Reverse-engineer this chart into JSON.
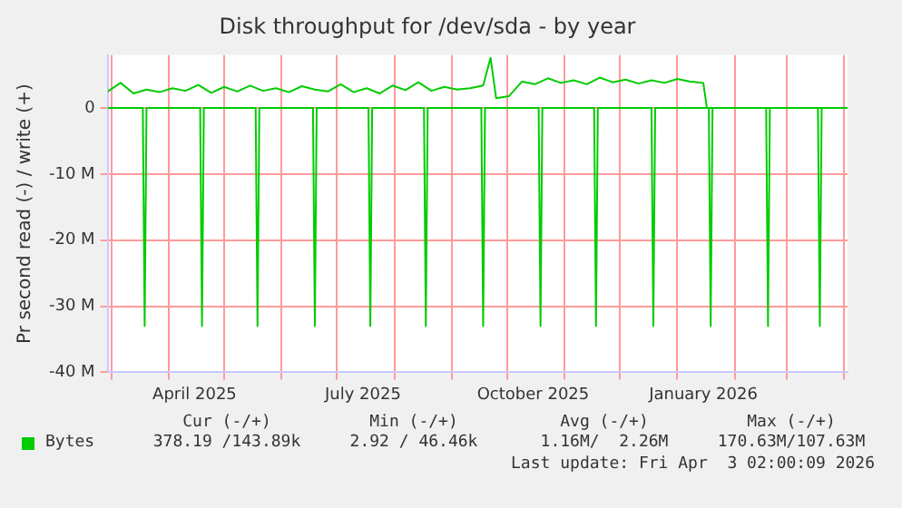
{
  "chart_data": {
    "type": "line",
    "title": "Disk throughput for /dev/sda - by year",
    "ylabel": "Pr second read (-) / write (+)",
    "xlim": [
      "2025-02-27",
      "2026-04-03"
    ],
    "xticks": [
      {
        "value": "2025-03-01",
        "label": null
      },
      {
        "value": "2025-04-01",
        "label": null
      },
      {
        "value": "2025-04-15",
        "label": "April 2025"
      },
      {
        "value": "2025-05-01",
        "label": null
      },
      {
        "value": "2025-06-01",
        "label": null
      },
      {
        "value": "2025-07-01",
        "label": null
      },
      {
        "value": "2025-07-15",
        "label": "July 2025"
      },
      {
        "value": "2025-08-01",
        "label": null
      },
      {
        "value": "2025-09-01",
        "label": null
      },
      {
        "value": "2025-10-01",
        "label": null
      },
      {
        "value": "2025-10-15",
        "label": "October 2025"
      },
      {
        "value": "2025-11-01",
        "label": null
      },
      {
        "value": "2025-12-01",
        "label": null
      },
      {
        "value": "2026-01-01",
        "label": null
      },
      {
        "value": "2026-01-15",
        "label": "January 2026"
      },
      {
        "value": "2026-02-01",
        "label": null
      },
      {
        "value": "2026-03-01",
        "label": null
      },
      {
        "value": "2026-04-01",
        "label": null
      }
    ],
    "ylim": [
      -40,
      8
    ],
    "yticks": [
      {
        "value": -40,
        "label": "-40 M"
      },
      {
        "value": -30,
        "label": "-30 M"
      },
      {
        "value": -20,
        "label": "-20 M"
      },
      {
        "value": -10,
        "label": "-10 M"
      },
      0
    ],
    "grid": true,
    "legend": "bottom",
    "marker": "none",
    "line_style": "solid",
    "series": [
      {
        "name": "Bytes",
        "color": "#00cc00",
        "x": [
          "2025-02-27",
          "2025-03-18",
          "2025-03-19",
          "2025-03-20",
          "2025-04-18",
          "2025-04-19",
          "2025-04-20",
          "2025-05-18",
          "2025-05-19",
          "2025-05-20",
          "2025-06-18",
          "2025-06-19",
          "2025-06-20",
          "2025-07-18",
          "2025-07-19",
          "2025-07-20",
          "2025-08-17",
          "2025-08-18",
          "2025-08-19",
          "2025-09-17",
          "2025-09-18",
          "2025-09-19",
          "2025-10-18",
          "2025-10-19",
          "2025-10-20",
          "2025-11-17",
          "2025-11-18",
          "2025-11-19",
          "2025-12-18",
          "2025-12-19",
          "2025-12-20",
          "2026-01-18",
          "2026-01-19",
          "2026-01-20",
          "2026-02-18",
          "2026-02-19",
          "2026-02-20",
          "2026-03-18",
          "2026-03-19",
          "2026-03-20",
          "2026-04-03"
        ],
        "values": [
          0,
          0,
          -33,
          0,
          0,
          -33,
          0,
          0,
          -33,
          0,
          0,
          -33,
          0,
          0,
          -33,
          0,
          0,
          -33,
          0,
          0,
          -33,
          0,
          0,
          -33,
          0,
          0,
          -33,
          0,
          0,
          -33,
          0,
          0,
          -33,
          0,
          0,
          -33,
          0,
          0,
          -33,
          0,
          0
        ]
      },
      {
        "color": "#00cc00",
        "x": [
          "2025-02-27",
          "2025-03-06",
          "2025-03-13",
          "2025-03-20",
          "2025-03-27",
          "2025-04-03",
          "2025-04-10",
          "2025-04-17",
          "2025-04-24",
          "2025-05-01",
          "2025-05-08",
          "2025-05-15",
          "2025-05-22",
          "2025-05-29",
          "2025-06-05",
          "2025-06-12",
          "2025-06-19",
          "2025-06-26",
          "2025-07-03",
          "2025-07-10",
          "2025-07-17",
          "2025-07-24",
          "2025-07-31",
          "2025-08-07",
          "2025-08-14",
          "2025-08-21",
          "2025-08-28",
          "2025-09-04",
          "2025-09-11",
          "2025-09-18",
          "2025-09-22",
          "2025-09-25",
          "2025-10-02",
          "2025-10-09",
          "2025-10-16",
          "2025-10-23",
          "2025-10-30",
          "2025-11-06",
          "2025-11-13",
          "2025-11-20",
          "2025-11-27",
          "2025-12-04",
          "2025-12-11",
          "2025-12-18",
          "2025-12-25",
          "2026-01-01",
          "2026-01-08",
          "2026-01-15",
          "2026-01-17",
          "2026-02-01",
          "2026-03-01",
          "2026-04-03"
        ],
        "values": [
          2.5,
          3.8,
          2.2,
          2.8,
          2.4,
          3.0,
          2.6,
          3.5,
          2.3,
          3.2,
          2.5,
          3.4,
          2.6,
          3.0,
          2.4,
          3.3,
          2.8,
          2.5,
          3.6,
          2.4,
          3.0,
          2.2,
          3.4,
          2.7,
          3.9,
          2.6,
          3.2,
          2.8,
          3.0,
          3.4,
          7.6,
          1.5,
          1.8,
          4.0,
          3.6,
          4.5,
          3.8,
          4.2,
          3.6,
          4.6,
          3.9,
          4.3,
          3.7,
          4.2,
          3.8,
          4.4,
          4.0,
          3.8,
          0,
          0,
          0,
          0
        ]
      }
    ],
    "annotations": [
      "Cur (-/+)",
      "Min (-/+)",
      "Avg (-/+)",
      "Max (-/+)",
      "378.19 /143.89k",
      "2.92 / 46.46k",
      "1.16M/  2.26M",
      "170.63M/107.63M",
      "Last update: Fri Apr  3 02:00:09 2026"
    ]
  }
}
